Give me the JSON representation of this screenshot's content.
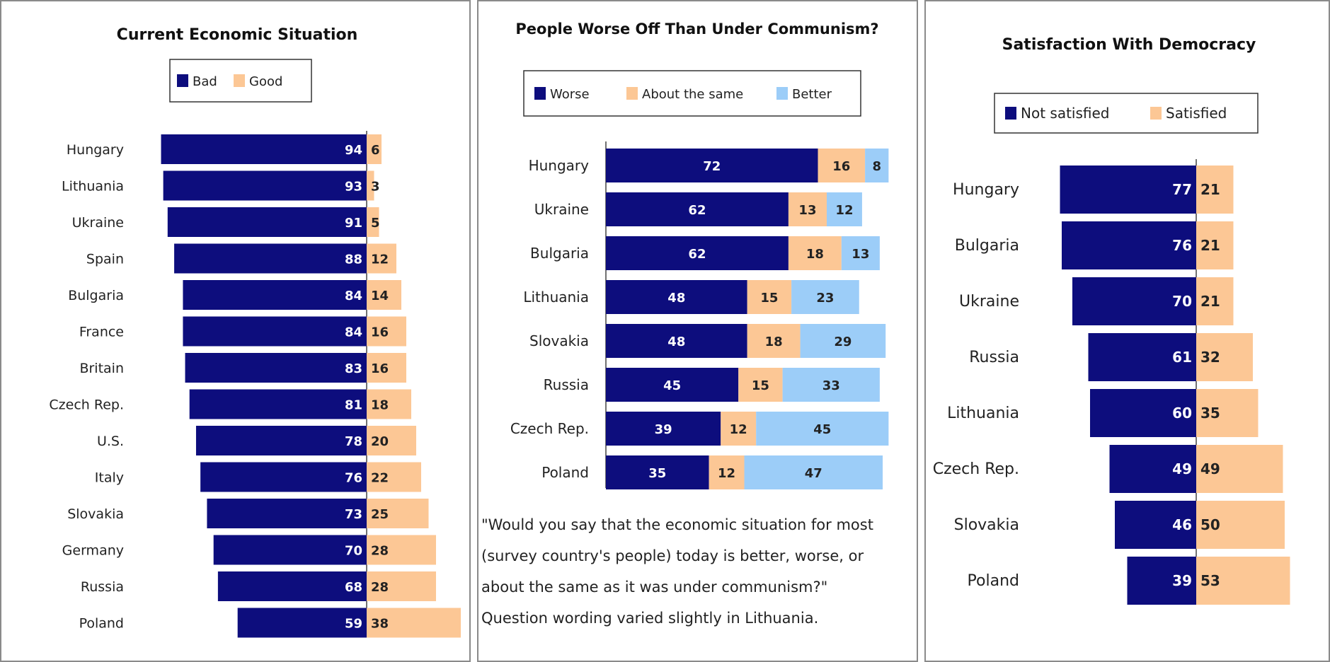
{
  "colors": {
    "navy": "#0d0d7d",
    "peach": "#fcc795",
    "lightblue": "#9ccdf8"
  },
  "chart_data": [
    {
      "type": "bar",
      "title": "Current Economic Situation",
      "categories": [
        "Hungary",
        "Lithuania",
        "Ukraine",
        "Spain",
        "Bulgaria",
        "France",
        "Britain",
        "Czech Rep.",
        "U.S.",
        "Italy",
        "Slovakia",
        "Germany",
        "Russia",
        "Poland"
      ],
      "series": [
        {
          "name": "Bad",
          "color": "#0d0d7d",
          "values": [
            94,
            93,
            91,
            88,
            84,
            84,
            83,
            81,
            78,
            76,
            73,
            70,
            68,
            59
          ]
        },
        {
          "name": "Good",
          "color": "#fcc795",
          "values": [
            6,
            3,
            5,
            12,
            14,
            16,
            16,
            18,
            20,
            22,
            25,
            28,
            28,
            38
          ]
        }
      ],
      "legend": "top-center",
      "orientation": "horizontal-diverging"
    },
    {
      "type": "bar",
      "title": "People Worse Off Than Under Communism?",
      "categories": [
        "Hungary",
        "Ukraine",
        "Bulgaria",
        "Lithuania",
        "Slovakia",
        "Russia",
        "Czech Rep.",
        "Poland"
      ],
      "series": [
        {
          "name": "Worse",
          "color": "#0d0d7d",
          "values": [
            72,
            62,
            62,
            48,
            48,
            45,
            39,
            35
          ]
        },
        {
          "name": "About the same",
          "color": "#fcc795",
          "values": [
            16,
            13,
            18,
            15,
            18,
            15,
            12,
            12
          ]
        },
        {
          "name": "Better",
          "color": "#9ccdf8",
          "values": [
            8,
            12,
            13,
            23,
            29,
            33,
            45,
            47
          ]
        }
      ],
      "legend": "top-center",
      "orientation": "horizontal-stacked"
    },
    {
      "type": "bar",
      "title": "Satisfaction With Democracy",
      "categories": [
        "Hungary",
        "Bulgaria",
        "Ukraine",
        "Russia",
        "Lithuania",
        "Czech Rep.",
        "Slovakia",
        "Poland"
      ],
      "series": [
        {
          "name": "Not satisfied",
          "color": "#0d0d7d",
          "values": [
            77,
            76,
            70,
            61,
            60,
            49,
            46,
            39
          ]
        },
        {
          "name": "Satisfied",
          "color": "#fcc795",
          "values": [
            21,
            21,
            21,
            32,
            35,
            49,
            50,
            53
          ]
        }
      ],
      "legend": "top-center",
      "orientation": "horizontal-diverging"
    }
  ],
  "note": {
    "line1": "\"Would you say that the economic situation for most",
    "line2": "(survey country's people) today is better, worse, or",
    "line3": "about the same as it was under communism?\"",
    "line4": "Question wording varied slightly in Lithuania."
  }
}
